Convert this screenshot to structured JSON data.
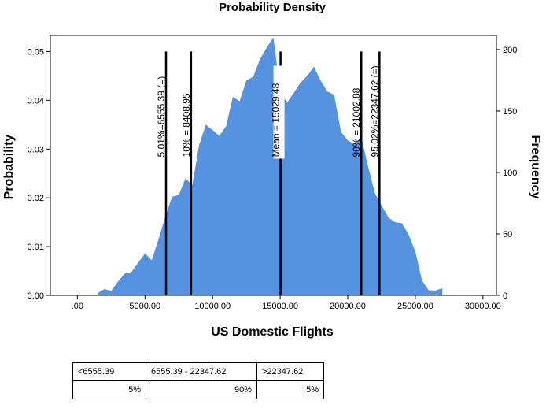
{
  "chart_data": {
    "type": "area",
    "title": "Probability Density",
    "xlabel": "US Domestic Flights",
    "ylabel": "Probability",
    "y2label": "Frequency",
    "xlim": [
      -2000,
      31000
    ],
    "ylim": [
      0,
      0.0533
    ],
    "y2lim": [
      0,
      211.5
    ],
    "x_ticks": [
      0,
      5000,
      10000,
      15000,
      20000,
      25000,
      30000
    ],
    "x_tick_labels": [
      ".00",
      "5000.00",
      "10000.00",
      "15000.00",
      "20000.00",
      "25000.00",
      "30000.00"
    ],
    "y_ticks": [
      0,
      0.01,
      0.02,
      0.03,
      0.04,
      0.05
    ],
    "y_tick_labels": [
      "0.00",
      "0.01",
      "0.02",
      "0.03",
      "0.04",
      "0.05"
    ],
    "y2_ticks": [
      0,
      50,
      100,
      150,
      200
    ],
    "y2_tick_labels": [
      "0",
      "50",
      "100",
      "150",
      "200"
    ],
    "fill_color": "#5592e0",
    "grid": false,
    "series": [
      {
        "x": [
          1500,
          2000,
          2500,
          3000,
          3500,
          4000,
          4500,
          5000,
          5500,
          6000,
          6500,
          7000,
          7500,
          8000,
          8500,
          9000,
          9500,
          10000,
          10500,
          11000,
          11500,
          12000,
          12500,
          13000,
          13500,
          14000,
          14500,
          15000,
          15500,
          16000,
          16500,
          17000,
          17500,
          18000,
          18500,
          19000,
          19500,
          20000,
          20500,
          21000,
          21500,
          22000,
          22500,
          23000,
          23500,
          24000,
          24500,
          25000,
          25500,
          26000,
          26500,
          27000
        ],
        "y": [
          0.0005,
          0.0013,
          0.0009,
          0.0028,
          0.0045,
          0.0048,
          0.0067,
          0.0086,
          0.0072,
          0.0115,
          0.0161,
          0.0202,
          0.0206,
          0.024,
          0.0226,
          0.0308,
          0.035,
          0.0339,
          0.0327,
          0.0347,
          0.0407,
          0.0398,
          0.0441,
          0.0448,
          0.0484,
          0.0508,
          0.0529,
          0.042,
          0.0395,
          0.0415,
          0.0436,
          0.045,
          0.0469,
          0.044,
          0.0418,
          0.0411,
          0.0335,
          0.0318,
          0.031,
          0.0325,
          0.0265,
          0.021,
          0.0185,
          0.016,
          0.015,
          0.0148,
          0.0125,
          0.009,
          0.003,
          0.001,
          0.001,
          0.0015
        ]
      }
    ],
    "markers": [
      {
        "x": 6555.39,
        "label": "5.01%=6555.39 (=)",
        "y_top": 0.05,
        "boxed": false
      },
      {
        "x": 8408.95,
        "label": "10% = 8408.95",
        "y_top": 0.05,
        "boxed": false
      },
      {
        "x": 15029.48,
        "label": "Mean = 15029.48",
        "y_top": 0.05,
        "boxed": true
      },
      {
        "x": 21002.88,
        "label": "90% = 21002.88",
        "y_top": 0.05,
        "boxed": false
      },
      {
        "x": 22347.62,
        "label": "95.02%=22347.62 (=)",
        "y_top": 0.05,
        "boxed": false
      }
    ]
  },
  "table": {
    "headers": [
      "<6555.39",
      "6555.39 - 22347.62",
      ">22347.62"
    ],
    "values": [
      "5%",
      "90%",
      "5%"
    ]
  }
}
